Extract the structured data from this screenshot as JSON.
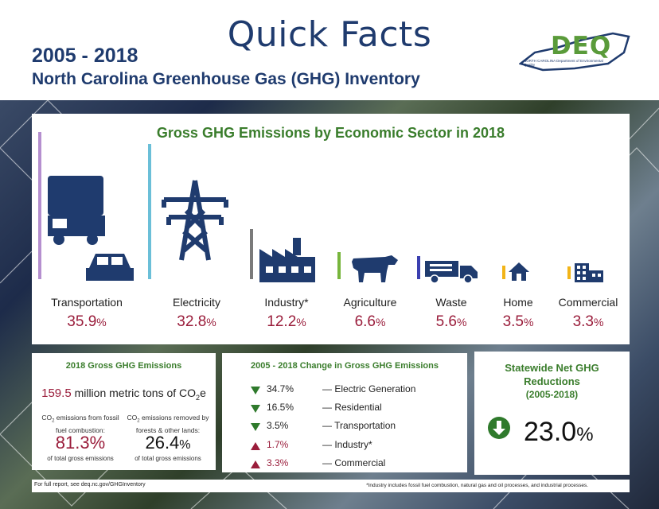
{
  "header": {
    "title": "Quick Facts",
    "years": "2005 - 2018",
    "subtitle": "North Carolina Greenhouse Gas (GHG) Inventory",
    "logo_text": "DEQ",
    "logo_sub": "NORTH CAROLINA Department of Environmental Quality"
  },
  "main": {
    "title": "Gross GHG Emissions by Economic Sector in 2018",
    "sectors": [
      {
        "label": "Transportation",
        "value": "35.9",
        "unit": "%",
        "color": "#b58fcf",
        "icon": "truck-car-icon"
      },
      {
        "label": "Electricity",
        "value": "32.8",
        "unit": "%",
        "color": "#6bbfd8",
        "icon": "power-tower-icon"
      },
      {
        "label": "Industry*",
        "value": "12.2",
        "unit": "%",
        "color": "#7a7a7a",
        "icon": "factory-icon"
      },
      {
        "label": "Agriculture",
        "value": "6.6",
        "unit": "%",
        "color": "#77b53c",
        "icon": "cow-icon"
      },
      {
        "label": "Waste",
        "value": "5.6",
        "unit": "%",
        "color": "#3b3fb0",
        "icon": "garbage-truck-icon"
      },
      {
        "label": "Home",
        "value": "3.5",
        "unit": "%",
        "color": "#f2b418",
        "icon": "house-icon"
      },
      {
        "label": "Commercial",
        "value": "3.3",
        "unit": "%",
        "color": "#f2b418",
        "icon": "building-icon"
      }
    ]
  },
  "gross": {
    "title": "2018 Gross GHG Emissions",
    "total_value": "159.5",
    "total_text": "million metric tons of CO",
    "total_sub": "2",
    "total_end": "e",
    "left_label_a": "CO",
    "left_label_sub": "2",
    "left_label_b": " emissions from fossil fuel combustion:",
    "left_value": "81.3%",
    "left_sub": "of total gross emissions",
    "right_label_a": "CO",
    "right_label_sub": "2",
    "right_label_b": " emissions removed by forests & other lands:",
    "right_value": "26.4",
    "right_unit": "%",
    "right_sub": "of total gross emissions"
  },
  "change": {
    "title": "2005 - 2018 Change in Gross GHG Emissions",
    "rows": [
      {
        "dir": "down",
        "pct": "34.7%",
        "label": "— Electric Generation"
      },
      {
        "dir": "down",
        "pct": "16.5%",
        "label": "— Residential"
      },
      {
        "dir": "down",
        "pct": "3.5%",
        "label": "— Transportation"
      },
      {
        "dir": "up",
        "pct": "1.7%",
        "label": "— Industry*"
      },
      {
        "dir": "up",
        "pct": "3.3%",
        "label": "— Commercial"
      }
    ]
  },
  "reductions": {
    "title_a": "Statewide Net GHG",
    "title_b": "Reductions",
    "title_c": "(2005-2018)",
    "value": "23.0",
    "unit": "%"
  },
  "footer": {
    "left": "For full report, see deq.nc.gov/GHGInventory",
    "right": "*Industry includes fossil fuel combustion, natural gas and oil processes, and industrial processes."
  }
}
